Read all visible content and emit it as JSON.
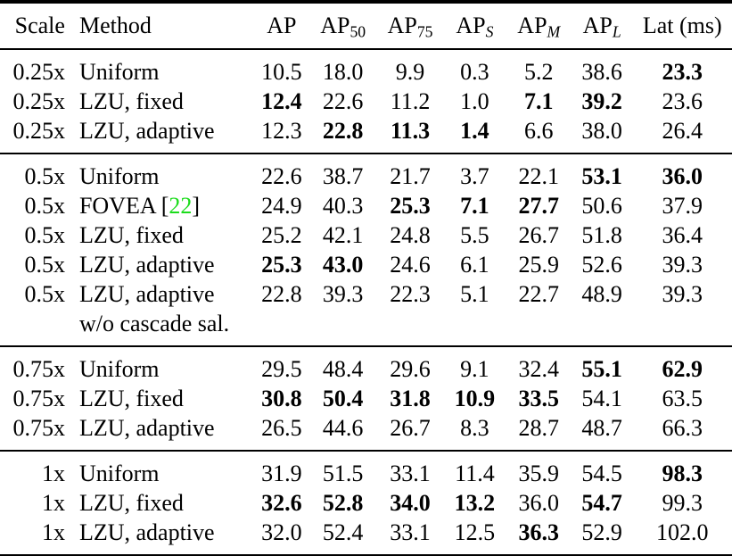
{
  "page": {
    "background": "#ffffff",
    "text_color": "#000000",
    "citation_color": "#1bdc1b"
  },
  "table": {
    "columns": [
      {
        "key": "scale",
        "label": "Scale"
      },
      {
        "key": "method",
        "label": "Method"
      },
      {
        "key": "ap",
        "base": "AP",
        "sub": ""
      },
      {
        "key": "ap50",
        "base": "AP",
        "sub": "50",
        "italic_sub": false
      },
      {
        "key": "ap75",
        "base": "AP",
        "sub": "75",
        "italic_sub": false
      },
      {
        "key": "ap-s",
        "base": "AP",
        "sub": "S",
        "italic_sub": true
      },
      {
        "key": "ap-m",
        "base": "AP",
        "sub": "M",
        "italic_sub": true
      },
      {
        "key": "ap-l",
        "base": "AP",
        "sub": "L",
        "italic_sub": true
      },
      {
        "key": "lat",
        "label": "Lat (ms)"
      }
    ],
    "cite_open": "[",
    "cite_close": "]",
    "groups": [
      {
        "rows": [
          {
            "scale": "0.25x",
            "method": "Uniform",
            "values": [
              "10.5",
              "18.0",
              "9.9",
              "0.3",
              "5.2",
              "38.6",
              "23.3"
            ],
            "bold": [
              false,
              false,
              false,
              false,
              false,
              false,
              true
            ]
          },
          {
            "scale": "0.25x",
            "method": "LZU, fixed",
            "values": [
              "12.4",
              "22.6",
              "11.2",
              "1.0",
              "7.1",
              "39.2",
              "23.6"
            ],
            "bold": [
              true,
              false,
              false,
              false,
              true,
              true,
              false
            ]
          },
          {
            "scale": "0.25x",
            "method": "LZU, adaptive",
            "values": [
              "12.3",
              "22.8",
              "11.3",
              "1.4",
              "6.6",
              "38.0",
              "26.4"
            ],
            "bold": [
              false,
              true,
              true,
              true,
              false,
              false,
              false
            ]
          }
        ]
      },
      {
        "rows": [
          {
            "scale": "0.5x",
            "method": "Uniform",
            "values": [
              "22.6",
              "38.7",
              "21.7",
              "3.7",
              "22.1",
              "53.1",
              "36.0"
            ],
            "bold": [
              false,
              false,
              false,
              false,
              false,
              true,
              true
            ]
          },
          {
            "scale": "0.5x",
            "method": "FOVEA",
            "citation": "22",
            "values": [
              "24.9",
              "40.3",
              "25.3",
              "7.1",
              "27.7",
              "50.6",
              "37.9"
            ],
            "bold": [
              false,
              false,
              true,
              true,
              true,
              false,
              false
            ]
          },
          {
            "scale": "0.5x",
            "method": "LZU, fixed",
            "values": [
              "25.2",
              "42.1",
              "24.8",
              "5.5",
              "26.7",
              "51.8",
              "36.4"
            ],
            "bold": [
              false,
              false,
              false,
              false,
              false,
              false,
              false
            ]
          },
          {
            "scale": "0.5x",
            "method": "LZU, adaptive",
            "values": [
              "25.3",
              "43.0",
              "24.6",
              "6.1",
              "25.9",
              "52.6",
              "39.3"
            ],
            "bold": [
              true,
              true,
              false,
              false,
              false,
              false,
              false
            ]
          },
          {
            "scale": "0.5x",
            "method": "LZU, adaptive",
            "method_line2": "w/o cascade sal.",
            "values": [
              "22.8",
              "39.3",
              "22.3",
              "5.1",
              "22.7",
              "48.9",
              "39.3"
            ],
            "bold": [
              false,
              false,
              false,
              false,
              false,
              false,
              false
            ]
          }
        ]
      },
      {
        "rows": [
          {
            "scale": "0.75x",
            "method": "Uniform",
            "values": [
              "29.5",
              "48.4",
              "29.6",
              "9.1",
              "32.4",
              "55.1",
              "62.9"
            ],
            "bold": [
              false,
              false,
              false,
              false,
              false,
              true,
              true
            ]
          },
          {
            "scale": "0.75x",
            "method": "LZU, fixed",
            "values": [
              "30.8",
              "50.4",
              "31.8",
              "10.9",
              "33.5",
              "54.1",
              "63.5"
            ],
            "bold": [
              true,
              true,
              true,
              true,
              true,
              false,
              false
            ]
          },
          {
            "scale": "0.75x",
            "method": "LZU, adaptive",
            "values": [
              "26.5",
              "44.6",
              "26.7",
              "8.3",
              "28.7",
              "48.7",
              "66.3"
            ],
            "bold": [
              false,
              false,
              false,
              false,
              false,
              false,
              false
            ]
          }
        ]
      },
      {
        "rows": [
          {
            "scale": "1x",
            "method": "Uniform",
            "values": [
              "31.9",
              "51.5",
              "33.1",
              "11.4",
              "35.9",
              "54.5",
              "98.3"
            ],
            "bold": [
              false,
              false,
              false,
              false,
              false,
              false,
              true
            ]
          },
          {
            "scale": "1x",
            "method": "LZU, fixed",
            "values": [
              "32.6",
              "52.8",
              "34.0",
              "13.2",
              "36.0",
              "54.7",
              "99.3"
            ],
            "bold": [
              true,
              true,
              true,
              true,
              false,
              true,
              false
            ]
          },
          {
            "scale": "1x",
            "method": "LZU, adaptive",
            "values": [
              "32.0",
              "52.4",
              "33.1",
              "12.5",
              "36.3",
              "52.9",
              "102.0"
            ],
            "bold": [
              false,
              false,
              false,
              false,
              true,
              false,
              false
            ]
          }
        ]
      }
    ]
  }
}
